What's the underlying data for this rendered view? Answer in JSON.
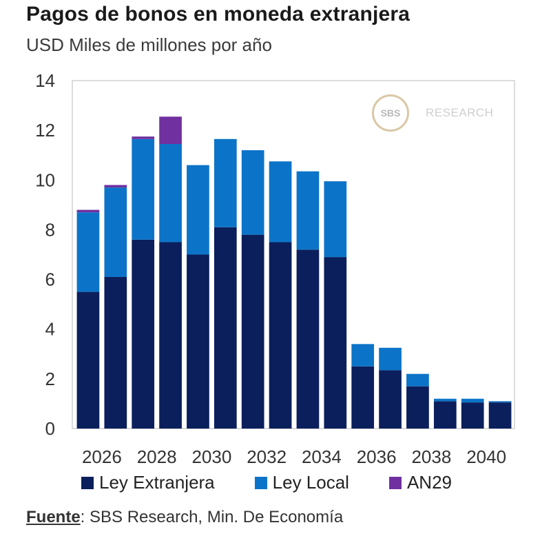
{
  "header": {
    "title": "Pagos de bonos en moneda extranjera",
    "subtitle": "USD Miles de millones por año"
  },
  "logo": {
    "mark": "SBS",
    "text": "RESEARCH"
  },
  "source": {
    "label": "Fuente",
    "text": ": SBS Research, Min. De Economía"
  },
  "colors": {
    "ley_extranjera": "#0b1f5c",
    "ley_local": "#0c74c8",
    "an29": "#7030a0",
    "plot_border": "#d0d0d0"
  },
  "chart_data": {
    "type": "bar",
    "stacked": true,
    "categories": [
      "2026",
      "2027",
      "2028",
      "2029",
      "2030",
      "2031",
      "2032",
      "2033",
      "2034",
      "2035",
      "2036",
      "2037",
      "2038",
      "2039",
      "2040",
      "2041"
    ],
    "x_tick_labels": [
      "2026",
      "2028",
      "2030",
      "2032",
      "2034",
      "2036",
      "2038",
      "2040"
    ],
    "series": [
      {
        "name": "Ley Extranjera",
        "color": "#0b1f5c",
        "values": [
          5.5,
          6.1,
          7.6,
          7.5,
          7.0,
          8.1,
          7.8,
          7.5,
          7.2,
          6.9,
          2.5,
          2.35,
          1.7,
          1.1,
          1.05,
          1.05
        ]
      },
      {
        "name": "Ley Local",
        "color": "#0c74c8",
        "values": [
          3.2,
          3.6,
          4.05,
          3.95,
          3.6,
          3.55,
          3.4,
          3.25,
          3.15,
          3.05,
          0.9,
          0.9,
          0.5,
          0.1,
          0.15,
          0.05
        ]
      },
      {
        "name": "AN29",
        "color": "#7030a0",
        "values": [
          0.1,
          0.1,
          0.1,
          1.1,
          0,
          0,
          0,
          0,
          0,
          0,
          0,
          0,
          0,
          0,
          0,
          0
        ]
      }
    ],
    "ylim": [
      0,
      14
    ],
    "y_ticks": [
      "0",
      "2",
      "4",
      "6",
      "8",
      "10",
      "12",
      "14"
    ],
    "grid": false,
    "legend": "bottom",
    "xlabel": "",
    "ylabel": ""
  }
}
